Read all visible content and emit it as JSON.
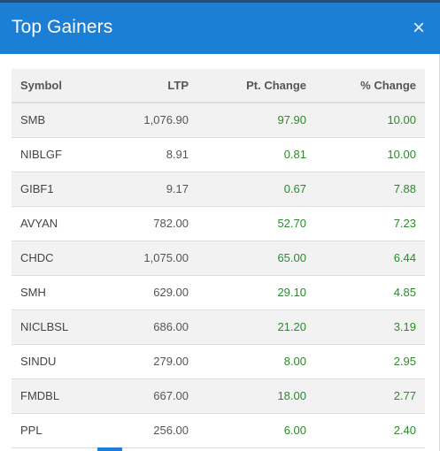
{
  "modal": {
    "title": "Top Gainers",
    "close_label": "×",
    "colors": {
      "header": "#1b7fd6",
      "positive": "#2b8a2b"
    }
  },
  "table": {
    "headers": {
      "symbol": "Symbol",
      "ltp": "LTP",
      "pt_change": "Pt. Change",
      "pct_change": "% Change"
    },
    "rows": [
      {
        "symbol": "SMB",
        "ltp": "1,076.90",
        "pt_change": "97.90",
        "pct_change": "10.00"
      },
      {
        "symbol": "NIBLGF",
        "ltp": "8.91",
        "pt_change": "0.81",
        "pct_change": "10.00"
      },
      {
        "symbol": "GIBF1",
        "ltp": "9.17",
        "pt_change": "0.67",
        "pct_change": "7.88"
      },
      {
        "symbol": "AVYAN",
        "ltp": "782.00",
        "pt_change": "52.70",
        "pct_change": "7.23"
      },
      {
        "symbol": "CHDC",
        "ltp": "1,075.00",
        "pt_change": "65.00",
        "pct_change": "6.44"
      },
      {
        "symbol": "SMH",
        "ltp": "629.00",
        "pt_change": "29.10",
        "pct_change": "4.85"
      },
      {
        "symbol": "NICLBSL",
        "ltp": "686.00",
        "pt_change": "21.20",
        "pct_change": "3.19"
      },
      {
        "symbol": "SINDU",
        "ltp": "279.00",
        "pt_change": "8.00",
        "pct_change": "2.95"
      },
      {
        "symbol": "FMDBL",
        "ltp": "667.00",
        "pt_change": "18.00",
        "pct_change": "2.77"
      },
      {
        "symbol": "PPL",
        "ltp": "256.00",
        "pt_change": "6.00",
        "pct_change": "2.40"
      }
    ]
  }
}
